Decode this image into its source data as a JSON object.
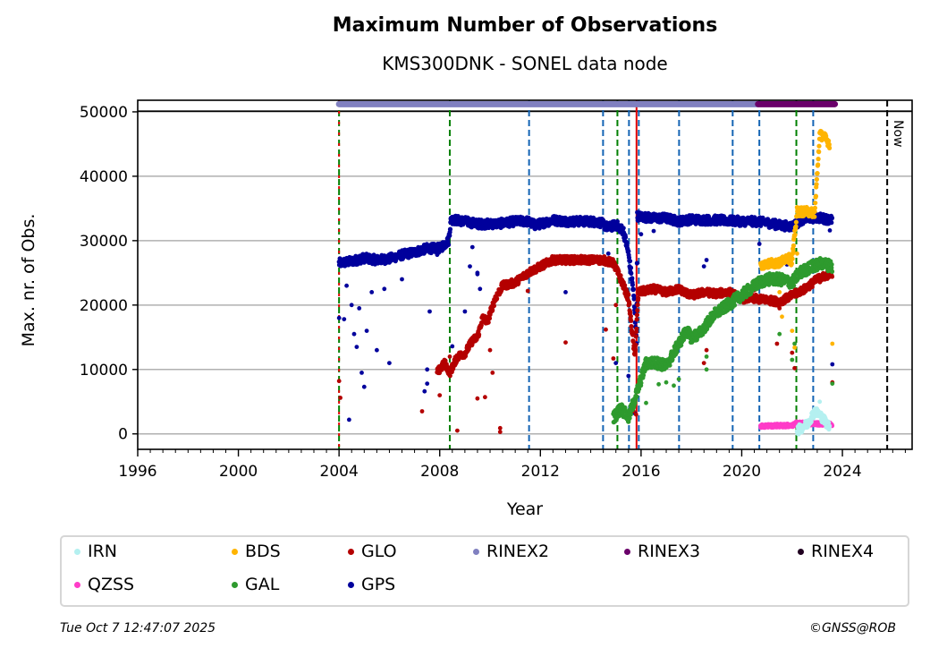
{
  "chart_data": {
    "type": "scatter",
    "title": "Maximum Number of Observations",
    "subtitle": "KMS300DNK - SONEL data node",
    "xlabel": "Year",
    "ylabel": "Max. nr. of Obs.",
    "xlim": [
      1996,
      2026.77
    ],
    "ylim": [
      -2400,
      51800
    ],
    "xticks": [
      1996,
      2000,
      2004,
      2008,
      2012,
      2016,
      2020,
      2024
    ],
    "xtick_labels": [
      "1996",
      "2000",
      "2004",
      "2008",
      "2012",
      "2016",
      "2020",
      "2024"
    ],
    "xminor_step": 0.5,
    "yticks": [
      0,
      10000,
      20000,
      30000,
      40000,
      50000
    ],
    "ytick_labels": [
      "0",
      "10000",
      "20000",
      "30000",
      "40000",
      "50000"
    ],
    "grid": "horizontal",
    "legend_position": "below",
    "top_reference_line": 50100,
    "now_line": {
      "x": 2025.78,
      "label": "Now"
    },
    "vertical_lines": [
      {
        "x": 2004.0,
        "color": "#008000",
        "style": "dashed"
      },
      {
        "x": 2004.0,
        "color": "#e00000",
        "style": "dotted"
      },
      {
        "x": 2008.4,
        "color": "#008000",
        "style": "dashed"
      },
      {
        "x": 2011.55,
        "color": "#1464b4",
        "style": "dashed"
      },
      {
        "x": 2014.49,
        "color": "#1464b4",
        "style": "dashed"
      },
      {
        "x": 2015.06,
        "color": "#008000",
        "style": "dashed"
      },
      {
        "x": 2015.52,
        "color": "#1464b4",
        "style": "dashed"
      },
      {
        "x": 2015.82,
        "color": "#e00000",
        "style": "solid"
      },
      {
        "x": 2015.91,
        "color": "#1464b4",
        "style": "dashed"
      },
      {
        "x": 2017.51,
        "color": "#1464b4",
        "style": "dashed"
      },
      {
        "x": 2019.64,
        "color": "#1464b4",
        "style": "dashed"
      },
      {
        "x": 2020.7,
        "color": "#1464b4",
        "style": "dashed"
      },
      {
        "x": 2022.17,
        "color": "#008000",
        "style": "dashed"
      },
      {
        "x": 2022.84,
        "color": "#1464b4",
        "style": "dashed"
      }
    ],
    "rinex_bars": [
      {
        "name": "RINEX2",
        "start": 2004.0,
        "end": 2020.65,
        "y": 51200,
        "color": "#8080c0"
      },
      {
        "name": "RINEX3",
        "start": 2020.65,
        "end": 2023.7,
        "y": 51200,
        "color": "#6a006a"
      }
    ],
    "series": [
      {
        "name": "GPS",
        "color": "#00009c",
        "trend": [
          [
            2004.0,
            26500
          ],
          [
            2004.5,
            26800
          ],
          [
            2005.0,
            27300
          ],
          [
            2005.5,
            27000
          ],
          [
            2006.0,
            27200
          ],
          [
            2006.5,
            27800
          ],
          [
            2007.0,
            28200
          ],
          [
            2007.5,
            28800
          ],
          [
            2008.0,
            28800
          ],
          [
            2008.35,
            30000
          ],
          [
            2008.45,
            33300
          ],
          [
            2009.0,
            33000
          ],
          [
            2009.5,
            32600
          ],
          [
            2010.0,
            32600
          ],
          [
            2010.5,
            32700
          ],
          [
            2011.0,
            33000
          ],
          [
            2011.5,
            33000
          ],
          [
            2011.8,
            32400
          ],
          [
            2012.5,
            33200
          ],
          [
            2013.0,
            33000
          ],
          [
            2013.5,
            33000
          ],
          [
            2014.0,
            33000
          ],
          [
            2014.4,
            32800
          ],
          [
            2014.7,
            32000
          ],
          [
            2015.0,
            32500
          ],
          [
            2015.3,
            31500
          ],
          [
            2015.5,
            28000
          ],
          [
            2015.7,
            22000
          ],
          [
            2015.82,
            14000
          ],
          [
            2015.85,
            33800
          ],
          [
            2016.5,
            33500
          ],
          [
            2017.0,
            33500
          ],
          [
            2017.5,
            33000
          ],
          [
            2018.0,
            33300
          ],
          [
            2018.5,
            33200
          ],
          [
            2019.0,
            33200
          ],
          [
            2019.5,
            33100
          ],
          [
            2020.0,
            33000
          ],
          [
            2020.5,
            33000
          ],
          [
            2021.0,
            32800
          ],
          [
            2021.5,
            32400
          ],
          [
            2022.0,
            32200
          ],
          [
            2022.5,
            33500
          ],
          [
            2023.0,
            33600
          ],
          [
            2023.6,
            33200
          ]
        ],
        "spread": 700,
        "outliers": [
          [
            2004.0,
            18000
          ],
          [
            2004.2,
            17800
          ],
          [
            2004.3,
            23000
          ],
          [
            2004.4,
            2200
          ],
          [
            2004.5,
            20000
          ],
          [
            2004.6,
            15500
          ],
          [
            2004.7,
            13500
          ],
          [
            2004.8,
            19500
          ],
          [
            2004.9,
            9500
          ],
          [
            2005.0,
            7300
          ],
          [
            2005.1,
            16000
          ],
          [
            2005.3,
            22000
          ],
          [
            2005.5,
            13000
          ],
          [
            2005.8,
            22500
          ],
          [
            2006.0,
            11000
          ],
          [
            2006.5,
            24000
          ],
          [
            2007.4,
            6600
          ],
          [
            2007.5,
            7800
          ],
          [
            2007.5,
            10000
          ],
          [
            2007.6,
            19000
          ],
          [
            2007.9,
            27800
          ],
          [
            2008.5,
            13600
          ],
          [
            2009.0,
            19000
          ],
          [
            2009.2,
            26000
          ],
          [
            2009.3,
            29000
          ],
          [
            2009.5,
            25000
          ],
          [
            2009.6,
            22500
          ],
          [
            2009.5,
            24800
          ],
          [
            2013.0,
            22000
          ],
          [
            2014.7,
            28000
          ],
          [
            2015.0,
            11000
          ],
          [
            2015.3,
            4000
          ],
          [
            2015.5,
            9000
          ],
          [
            2015.75,
            3200
          ],
          [
            2016.0,
            31000
          ],
          [
            2016.5,
            31500
          ],
          [
            2018.5,
            26000
          ],
          [
            2018.6,
            27000
          ],
          [
            2020.7,
            29500
          ],
          [
            2021.5,
            26000
          ],
          [
            2021.8,
            26300
          ],
          [
            2023.6,
            10800
          ],
          [
            2023.5,
            31600
          ]
        ]
      },
      {
        "name": "GLO",
        "color": "#b40000",
        "trend": [
          [
            2007.9,
            9500
          ],
          [
            2008.2,
            11000
          ],
          [
            2008.4,
            9500
          ],
          [
            2008.7,
            12000
          ],
          [
            2009.0,
            12500
          ],
          [
            2009.3,
            14500
          ],
          [
            2009.5,
            15000
          ],
          [
            2009.7,
            18000
          ],
          [
            2009.9,
            17500
          ],
          [
            2010.2,
            21000
          ],
          [
            2010.5,
            23000
          ],
          [
            2011.0,
            23500
          ],
          [
            2011.5,
            25000
          ],
          [
            2012.0,
            26000
          ],
          [
            2012.5,
            27000
          ],
          [
            2013.0,
            27000
          ],
          [
            2013.5,
            27000
          ],
          [
            2014.0,
            27000
          ],
          [
            2014.5,
            27000
          ],
          [
            2014.9,
            26500
          ],
          [
            2015.2,
            24000
          ],
          [
            2015.5,
            21000
          ],
          [
            2015.75,
            12000
          ],
          [
            2015.9,
            22000
          ],
          [
            2016.5,
            22500
          ],
          [
            2017.0,
            22000
          ],
          [
            2017.5,
            22500
          ],
          [
            2018.0,
            21500
          ],
          [
            2018.5,
            22000
          ],
          [
            2019.0,
            21800
          ],
          [
            2019.5,
            22000
          ],
          [
            2020.0,
            21000
          ],
          [
            2020.5,
            21000
          ],
          [
            2021.0,
            20800
          ],
          [
            2021.5,
            20500
          ],
          [
            2022.0,
            21500
          ],
          [
            2022.5,
            22500
          ],
          [
            2023.0,
            24000
          ],
          [
            2023.6,
            25000
          ]
        ],
        "spread": 600,
        "outliers": [
          [
            2004.0,
            8200
          ],
          [
            2004.05,
            5600
          ],
          [
            2007.3,
            3500
          ],
          [
            2008.0,
            6000
          ],
          [
            2008.4,
            12000
          ],
          [
            2008.7,
            500
          ],
          [
            2009.5,
            5500
          ],
          [
            2009.8,
            5700
          ],
          [
            2010.0,
            13000
          ],
          [
            2010.1,
            9500
          ],
          [
            2010.4,
            300
          ],
          [
            2010.4,
            900
          ],
          [
            2011.5,
            22200
          ],
          [
            2013.0,
            14200
          ],
          [
            2014.6,
            16200
          ],
          [
            2014.9,
            11700
          ],
          [
            2015.0,
            20000
          ],
          [
            2015.7,
            3500
          ],
          [
            2015.8,
            3000
          ],
          [
            2018.5,
            11000
          ],
          [
            2018.6,
            13000
          ],
          [
            2020.5,
            22300
          ],
          [
            2021.4,
            14000
          ],
          [
            2022.0,
            12600
          ],
          [
            2022.1,
            10200
          ],
          [
            2023.6,
            8000
          ],
          [
            2021.5,
            19500
          ]
        ]
      },
      {
        "name": "GAL",
        "color": "#2e9a2e",
        "trend": [
          [
            2014.9,
            2500
          ],
          [
            2015.2,
            4000
          ],
          [
            2015.5,
            2500
          ],
          [
            2015.8,
            6000
          ],
          [
            2016.2,
            11000
          ],
          [
            2016.7,
            11000
          ],
          [
            2017.0,
            10500
          ],
          [
            2017.5,
            14000
          ],
          [
            2017.8,
            16000
          ],
          [
            2018.0,
            15000
          ],
          [
            2018.3,
            15500
          ],
          [
            2018.6,
            17000
          ],
          [
            2018.9,
            18500
          ],
          [
            2020.7,
            23500
          ],
          [
            2021.0,
            24000
          ],
          [
            2021.5,
            24000
          ],
          [
            2022.0,
            23500
          ],
          [
            2022.3,
            25000
          ],
          [
            2022.8,
            26000
          ],
          [
            2023.2,
            26500
          ],
          [
            2023.6,
            26000
          ]
        ],
        "spread": 900,
        "outliers": [
          [
            2017.0,
            8000
          ],
          [
            2017.3,
            7500
          ],
          [
            2016.7,
            7700
          ],
          [
            2017.5,
            8500
          ],
          [
            2016.2,
            4800
          ],
          [
            2018.6,
            10000
          ],
          [
            2018.6,
            12000
          ],
          [
            2021.5,
            15500
          ],
          [
            2022.0,
            11500
          ],
          [
            2022.1,
            14000
          ],
          [
            2023.6,
            7800
          ]
        ]
      },
      {
        "name": "BDS",
        "color": "#ffb400",
        "trend": [
          [
            2020.75,
            26000
          ],
          [
            2021.0,
            26500
          ],
          [
            2021.5,
            26500
          ],
          [
            2021.8,
            27500
          ],
          [
            2022.0,
            26800
          ],
          [
            2022.2,
            34500
          ],
          [
            2022.6,
            34500
          ],
          [
            2022.9,
            34300
          ],
          [
            2023.1,
            46500
          ],
          [
            2023.3,
            46000
          ],
          [
            2023.5,
            45000
          ]
        ],
        "spread": 700,
        "outliers": [
          [
            2021.5,
            22000
          ],
          [
            2021.6,
            18200
          ],
          [
            2022.1,
            13400
          ],
          [
            2022.0,
            16000
          ],
          [
            2023.6,
            14000
          ],
          [
            2022.2,
            28000
          ]
        ]
      },
      {
        "name": "QZSS",
        "color": "#ff3cc8",
        "trend": [
          [
            2020.75,
            1200
          ],
          [
            2021.5,
            1300
          ],
          [
            2022.0,
            1300
          ],
          [
            2022.2,
            1700
          ],
          [
            2022.8,
            1600
          ],
          [
            2023.6,
            1500
          ]
        ],
        "spread": 250,
        "outliers": []
      },
      {
        "name": "IRN",
        "color": "#b4f0f0",
        "trend": [
          [
            2022.2,
            500
          ],
          [
            2022.6,
            1500
          ],
          [
            2022.9,
            3500
          ],
          [
            2023.1,
            3000
          ],
          [
            2023.5,
            1000
          ]
        ],
        "spread": 700,
        "outliers": [
          [
            2023.1,
            5000
          ]
        ]
      }
    ],
    "legend": [
      {
        "name": "IRN",
        "color": "#b4f0f0"
      },
      {
        "name": "BDS",
        "color": "#ffb400"
      },
      {
        "name": "GLO",
        "color": "#b40000"
      },
      {
        "name": "RINEX2",
        "color": "#8080c0"
      },
      {
        "name": "RINEX3",
        "color": "#6a006a"
      },
      {
        "name": "RINEX4",
        "color": "#200020"
      },
      {
        "name": "QZSS",
        "color": "#ff3cc8"
      },
      {
        "name": "GAL",
        "color": "#2e9a2e"
      },
      {
        "name": "GPS",
        "color": "#00009c"
      }
    ]
  },
  "footer": {
    "date": "Tue Oct  7 12:47:07 2025",
    "copyright": "©GNSS@ROB"
  }
}
